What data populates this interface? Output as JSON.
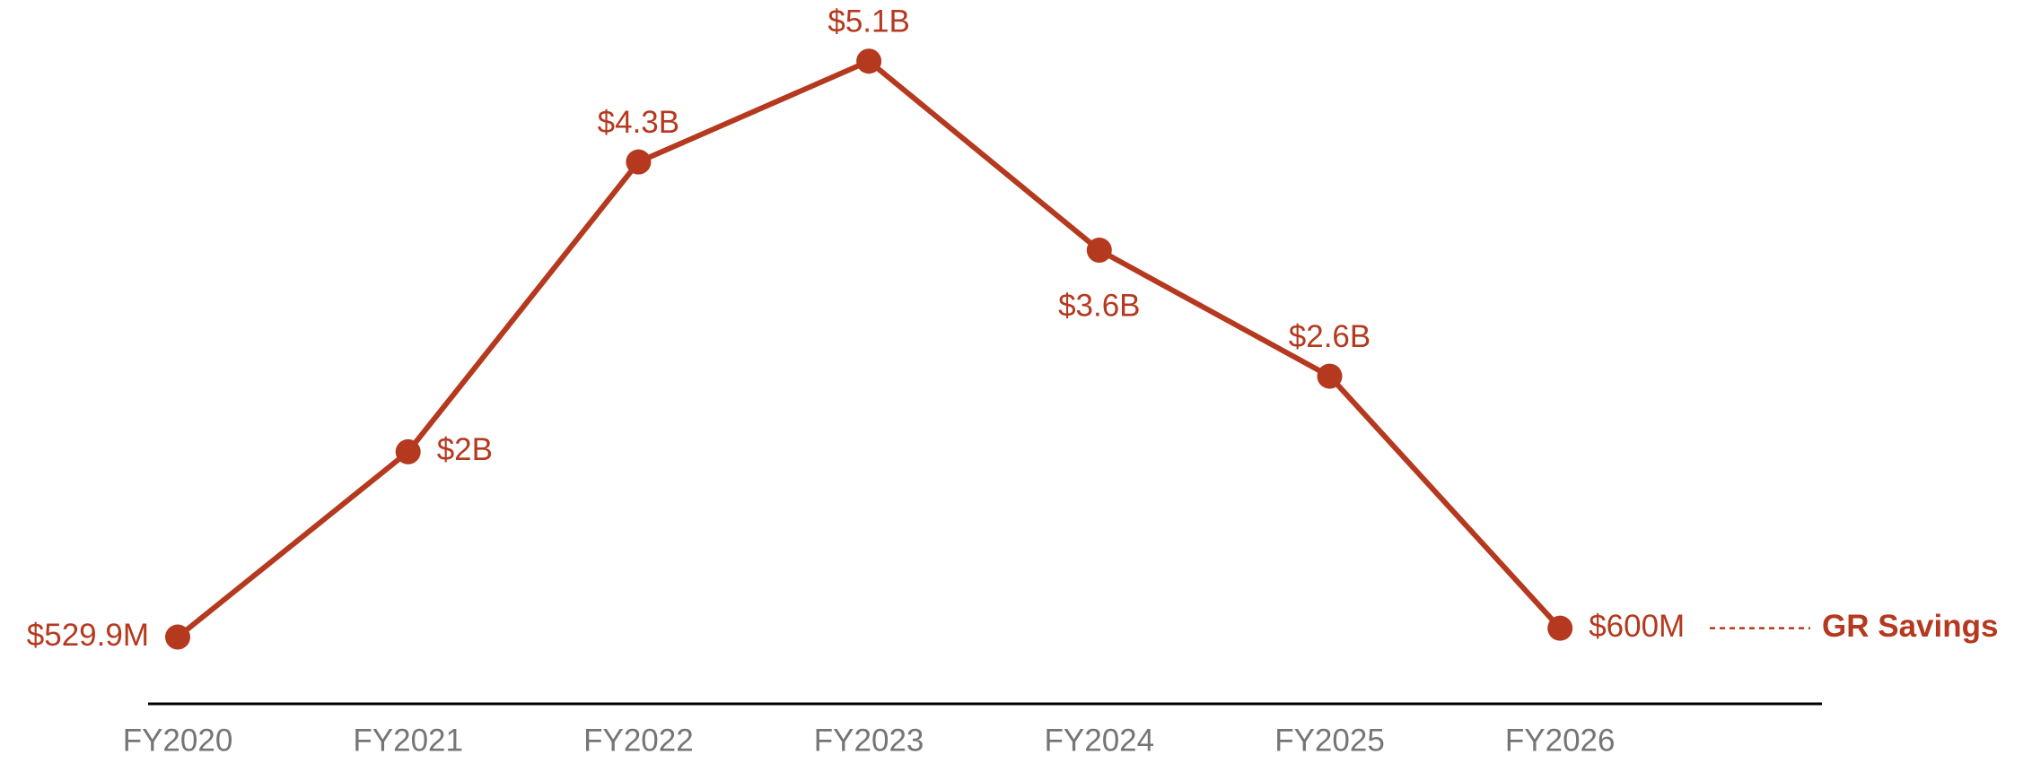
{
  "chart_data": {
    "type": "line",
    "categories": [
      "FY2020",
      "FY2021",
      "FY2022",
      "FY2023",
      "FY2024",
      "FY2025",
      "FY2026"
    ],
    "series": [
      {
        "name": "GR Savings",
        "color": "#b5391f",
        "values": [
          529900000,
          2000000000,
          4300000000,
          5100000000,
          3600000000,
          2600000000,
          600000000
        ],
        "value_labels": [
          "$529.9M",
          "$2B",
          "$4.3B",
          "$5.1B",
          "$3.6B",
          "$2.6B",
          "$600M"
        ]
      }
    ],
    "ylim": [
      0,
      5500000000
    ]
  }
}
